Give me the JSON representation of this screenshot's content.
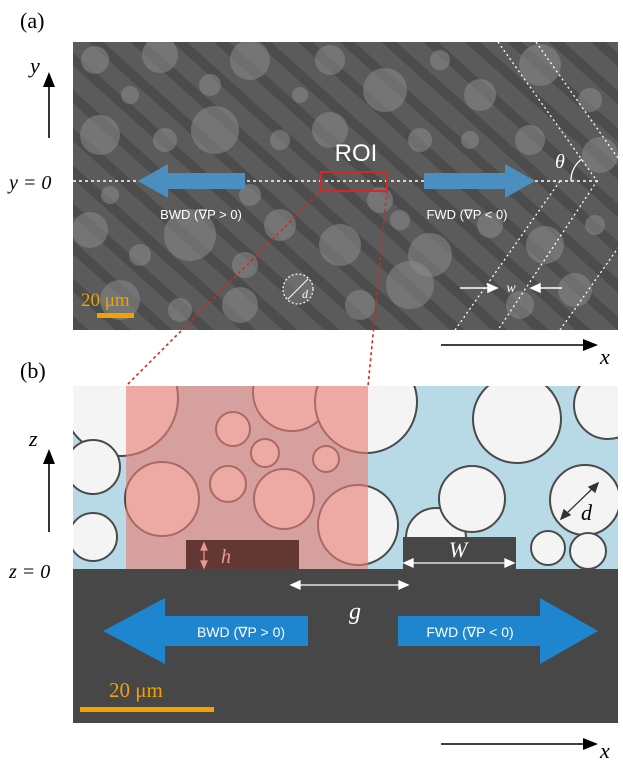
{
  "panel_a": {
    "label": "(a)",
    "y_axis": "y",
    "y_zero": "y = 0",
    "x_axis": "x",
    "roi": "ROI",
    "bwd": "BWD (∇P > 0)",
    "fwd": "FWD (∇P < 0)",
    "theta": "θ",
    "w": "w",
    "d": "d",
    "scale_bar": "20 μm"
  },
  "panel_b": {
    "label": "(b)",
    "z_axis": "z",
    "z_zero": "z = 0",
    "x_axis": "x",
    "h": "h",
    "w": "W",
    "g": "g",
    "d": "d",
    "bwd": "BWD (∇P > 0)",
    "fwd": "FWD (∇P < 0)",
    "scale_bar": "20 μm"
  },
  "colors": {
    "flow_arrow_a": "#4a8fc0",
    "flow_arrow_b": "#1e86cf",
    "roi_red": "#d2282a",
    "scale_orange": "#f2a100",
    "fluid_blue": "#b8d9e6",
    "roi_pink": "#e89a93",
    "substrate": "#474747"
  }
}
